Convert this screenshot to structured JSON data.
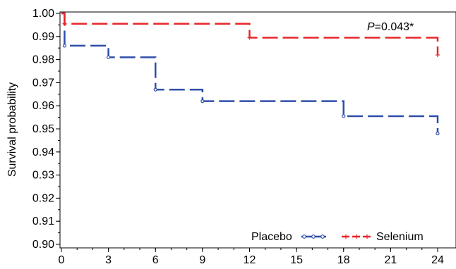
{
  "chart_data": {
    "type": "line",
    "step": true,
    "ylabel": "Survival probability",
    "xlabel": "",
    "xlim": [
      0,
      24
    ],
    "ylim": [
      0.9,
      1.0
    ],
    "x_ticks": [
      0,
      3,
      6,
      9,
      12,
      15,
      18,
      21,
      24
    ],
    "x_tick_labels": [
      "0",
      "3",
      "6",
      "9",
      "12",
      "15",
      "18",
      "21",
      "24"
    ],
    "y_ticks": [
      0.9,
      0.91,
      0.92,
      0.93,
      0.94,
      0.95,
      0.96,
      0.97,
      0.98,
      0.99,
      1.0
    ],
    "y_tick_labels": [
      "0.90",
      "0.91",
      "0.92",
      "0.93",
      "0.94",
      "0.95",
      "0.96",
      "0.97",
      "0.98",
      "0.99",
      "1.00"
    ],
    "grid": false,
    "legend_position": "bottom-right",
    "annotation": {
      "italic": "P",
      "rest": "=0.043*"
    },
    "series": [
      {
        "name": "Placebo",
        "color": "#2e4ea8",
        "marker": "open-circle",
        "points": [
          [
            0,
            1.0
          ],
          [
            0.2,
            0.986
          ],
          [
            3,
            0.981
          ],
          [
            6,
            0.967
          ],
          [
            9,
            0.962
          ],
          [
            18,
            0.9555
          ],
          [
            24,
            0.948
          ]
        ]
      },
      {
        "name": "Selenium",
        "color": "#e8262a",
        "marker": "plus",
        "points": [
          [
            0,
            1.0
          ],
          [
            0.2,
            0.9955
          ],
          [
            12,
            0.9895
          ],
          [
            24,
            0.982
          ]
        ]
      }
    ]
  }
}
